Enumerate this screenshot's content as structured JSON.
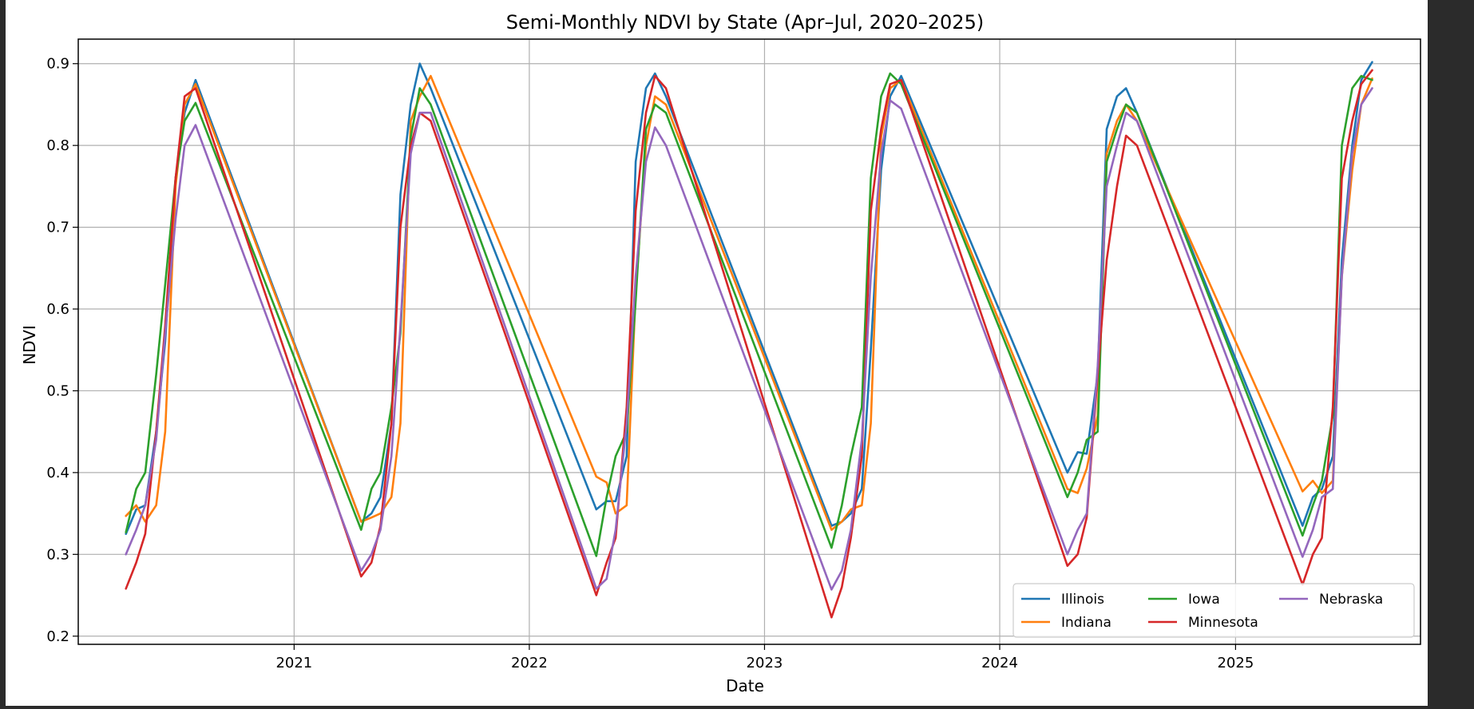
{
  "chart_data": {
    "type": "line",
    "title": "Semi-Monthly NDVI by State (Apr–Jul, 2020–2025)",
    "xlabel": "Date",
    "ylabel": "NDVI",
    "x_tick_labels": [
      "2021",
      "2022",
      "2023",
      "2024",
      "2025"
    ],
    "y_tick_labels": [
      "0.2",
      "0.3",
      "0.4",
      "0.5",
      "0.6",
      "0.7",
      "0.8",
      "0.9"
    ],
    "xlim": [
      "2020-02-01",
      "2025-10-15"
    ],
    "ylim": [
      0.19,
      0.93
    ],
    "grid": true,
    "legend_position": "lower-right",
    "x": [
      "2020-04-15",
      "2020-05-01",
      "2020-05-15",
      "2020-06-01",
      "2020-06-15",
      "2020-07-01",
      "2020-07-15",
      "2020-08-01",
      "2021-04-15",
      "2021-05-01",
      "2021-05-15",
      "2021-06-01",
      "2021-06-15",
      "2021-07-01",
      "2021-07-15",
      "2021-08-01",
      "2022-04-15",
      "2022-05-01",
      "2022-05-15",
      "2022-06-01",
      "2022-06-15",
      "2022-07-01",
      "2022-07-15",
      "2022-08-01",
      "2023-04-15",
      "2023-05-01",
      "2023-05-15",
      "2023-06-01",
      "2023-06-15",
      "2023-07-01",
      "2023-07-15",
      "2023-08-01",
      "2024-04-15",
      "2024-05-01",
      "2024-05-15",
      "2024-06-01",
      "2024-06-15",
      "2024-07-01",
      "2024-07-15",
      "2024-08-01",
      "2025-04-15",
      "2025-05-01",
      "2025-05-15",
      "2025-06-01",
      "2025-06-15",
      "2025-07-01",
      "2025-07-15",
      "2025-08-01"
    ],
    "series": [
      {
        "name": "Illinois",
        "color": "#1f77b4",
        "values": [
          0.325,
          0.355,
          0.36,
          0.45,
          0.56,
          0.76,
          0.84,
          0.88,
          0.34,
          0.35,
          0.37,
          0.46,
          0.74,
          0.85,
          0.9,
          0.87,
          0.355,
          0.365,
          0.365,
          0.42,
          0.78,
          0.87,
          0.888,
          0.86,
          0.335,
          0.34,
          0.35,
          0.38,
          0.55,
          0.77,
          0.86,
          0.885,
          0.4,
          0.425,
          0.423,
          0.52,
          0.82,
          0.86,
          0.87,
          0.84,
          0.335,
          0.37,
          0.38,
          0.42,
          0.66,
          0.8,
          0.88,
          0.902
        ]
      },
      {
        "name": "Indiana",
        "color": "#ff7f0e",
        "values": [
          0.347,
          0.36,
          0.34,
          0.36,
          0.45,
          0.75,
          0.85,
          0.875,
          0.34,
          0.345,
          0.35,
          0.37,
          0.46,
          0.83,
          0.86,
          0.885,
          0.395,
          0.388,
          0.35,
          0.36,
          0.62,
          0.8,
          0.86,
          0.85,
          0.33,
          0.34,
          0.355,
          0.36,
          0.46,
          0.81,
          0.87,
          0.88,
          0.38,
          0.375,
          0.405,
          0.47,
          0.79,
          0.83,
          0.85,
          0.83,
          0.377,
          0.39,
          0.375,
          0.39,
          0.64,
          0.77,
          0.85,
          0.882
        ]
      },
      {
        "name": "Iowa",
        "color": "#2ca02c",
        "values": [
          0.327,
          0.38,
          0.4,
          0.52,
          0.63,
          0.76,
          0.83,
          0.852,
          0.33,
          0.38,
          0.4,
          0.48,
          0.57,
          0.81,
          0.87,
          0.85,
          0.298,
          0.37,
          0.42,
          0.45,
          0.61,
          0.82,
          0.85,
          0.84,
          0.308,
          0.36,
          0.42,
          0.48,
          0.76,
          0.86,
          0.888,
          0.875,
          0.37,
          0.4,
          0.44,
          0.45,
          0.78,
          0.82,
          0.85,
          0.84,
          0.323,
          0.36,
          0.39,
          0.47,
          0.8,
          0.87,
          0.885,
          0.88
        ]
      },
      {
        "name": "Minnesota",
        "color": "#d62728",
        "values": [
          0.258,
          0.29,
          0.325,
          0.45,
          0.58,
          0.76,
          0.86,
          0.87,
          0.273,
          0.29,
          0.335,
          0.46,
          0.7,
          0.8,
          0.84,
          0.83,
          0.25,
          0.29,
          0.32,
          0.48,
          0.72,
          0.84,
          0.885,
          0.87,
          0.223,
          0.26,
          0.32,
          0.42,
          0.72,
          0.82,
          0.875,
          0.88,
          0.286,
          0.3,
          0.345,
          0.52,
          0.66,
          0.75,
          0.812,
          0.8,
          0.263,
          0.3,
          0.32,
          0.48,
          0.76,
          0.83,
          0.875,
          0.892
        ]
      },
      {
        "name": "Nebraska",
        "color": "#9467bd",
        "values": [
          0.3,
          0.33,
          0.36,
          0.44,
          0.57,
          0.71,
          0.8,
          0.825,
          0.28,
          0.3,
          0.33,
          0.42,
          0.58,
          0.79,
          0.84,
          0.84,
          0.258,
          0.27,
          0.33,
          0.46,
          0.64,
          0.78,
          0.822,
          0.8,
          0.257,
          0.28,
          0.33,
          0.44,
          0.64,
          0.79,
          0.855,
          0.845,
          0.3,
          0.33,
          0.35,
          0.53,
          0.75,
          0.8,
          0.84,
          0.83,
          0.297,
          0.33,
          0.37,
          0.38,
          0.64,
          0.79,
          0.85,
          0.87
        ]
      }
    ]
  }
}
